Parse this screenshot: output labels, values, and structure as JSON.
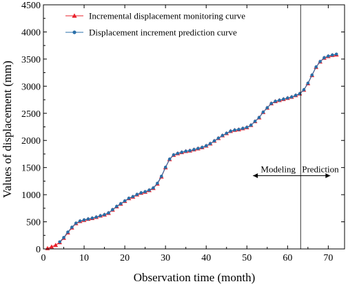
{
  "chart_data": {
    "type": "line",
    "xlabel": "Observation time (month)",
    "ylabel": "Values of displacement (mm)",
    "xlim": [
      0,
      74
    ],
    "ylim": [
      0,
      4500
    ],
    "xticks": [
      0,
      10,
      20,
      30,
      40,
      50,
      60,
      70
    ],
    "yticks": [
      0,
      500,
      1000,
      1500,
      2000,
      2500,
      3000,
      3500,
      4000,
      4500
    ],
    "grid": false,
    "legend_position": "top-left",
    "x": [
      1,
      2,
      3,
      4,
      5,
      6,
      7,
      8,
      9,
      10,
      11,
      12,
      13,
      14,
      15,
      16,
      17,
      18,
      19,
      20,
      21,
      22,
      23,
      24,
      25,
      26,
      27,
      28,
      29,
      30,
      31,
      32,
      33,
      34,
      35,
      36,
      37,
      38,
      39,
      40,
      41,
      42,
      43,
      44,
      45,
      46,
      47,
      48,
      49,
      50,
      51,
      52,
      53,
      54,
      55,
      56,
      57,
      58,
      59,
      60,
      61,
      62,
      63,
      64,
      65,
      66,
      67,
      68,
      69,
      70,
      71,
      72
    ],
    "series": [
      {
        "name": "Incremental displacement monitoring curve",
        "color": "#e8212b",
        "marker": "triangle",
        "values": [
          10,
          40,
          70,
          120,
          200,
          300,
          390,
          470,
          510,
          530,
          550,
          565,
          585,
          610,
          630,
          660,
          720,
          780,
          830,
          880,
          930,
          960,
          1000,
          1030,
          1050,
          1080,
          1120,
          1200,
          1330,
          1500,
          1650,
          1730,
          1760,
          1780,
          1800,
          1810,
          1830,
          1850,
          1870,
          1900,
          1940,
          1990,
          2040,
          2090,
          2130,
          2170,
          2190,
          2200,
          2220,
          2240,
          2280,
          2350,
          2420,
          2520,
          2600,
          2680,
          2720,
          2740,
          2760,
          2780,
          2800,
          2830,
          2860,
          2930,
          3050,
          3200,
          3350,
          3450,
          3520,
          3550,
          3570,
          3580
        ]
      },
      {
        "name": "Displacement increment prediction curve",
        "color": "#2a6fa8",
        "marker": "circle",
        "values": [
          null,
          null,
          null,
          130,
          210,
          310,
          400,
          475,
          515,
          535,
          552,
          568,
          588,
          612,
          632,
          665,
          725,
          785,
          835,
          885,
          935,
          965,
          1005,
          1035,
          1055,
          1085,
          1125,
          1210,
          1340,
          1505,
          1655,
          1735,
          1762,
          1782,
          1802,
          1812,
          1832,
          1852,
          1872,
          1902,
          1942,
          1992,
          2042,
          2092,
          2132,
          2172,
          2192,
          2202,
          2222,
          2242,
          2282,
          2352,
          2422,
          2522,
          2602,
          2682,
          2722,
          2742,
          2762,
          2782,
          2802,
          2832,
          2862,
          2935,
          3055,
          3205,
          3355,
          3455,
          3525,
          3555,
          3575,
          3590
        ]
      }
    ],
    "annotations": {
      "split_x": 63.2,
      "modeling_label": "Modeling",
      "prediction_label": "Prediction",
      "arrow_y": 1350
    }
  }
}
